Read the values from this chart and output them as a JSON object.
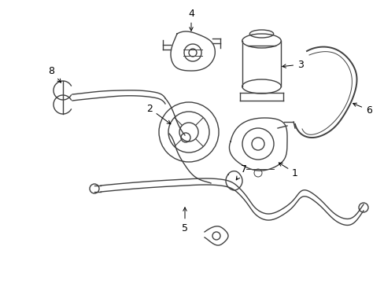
{
  "background_color": "#ffffff",
  "line_color": "#404040",
  "label_color": "#000000",
  "lw": 1.0,
  "figsize": [
    4.89,
    3.6
  ],
  "dpi": 100,
  "xlim": [
    0,
    489
  ],
  "ylim": [
    0,
    360
  ]
}
